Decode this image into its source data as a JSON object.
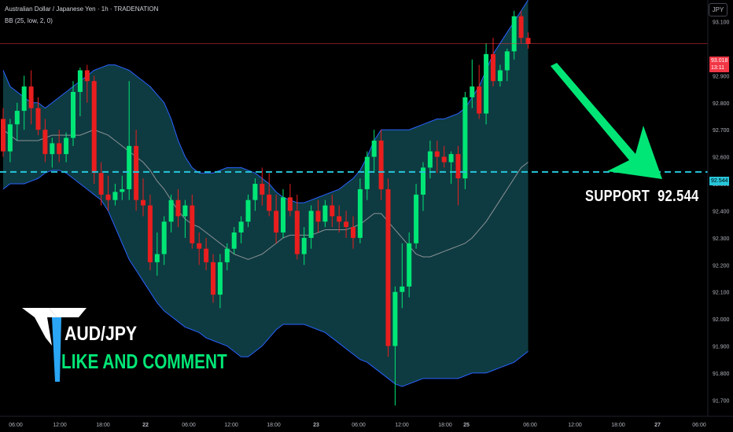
{
  "header": {
    "title": "Australian Dollar / Japanese Yen · 1h · TRADENATION",
    "indicator": "BB (25, low, 2, 0)",
    "currency_button": "JPY"
  },
  "price_tags": {
    "last_price": "93.018",
    "last_price_countdown": "13:11",
    "support_level": "92.544"
  },
  "annotations": {
    "support_text": "SUPPORT  92.544",
    "pair_text": "AUD/JPY",
    "cta_text": "LIKE AND COMMENT"
  },
  "colors": {
    "up": "#00e676",
    "down": "#e91e1e",
    "band_fill": "#0e3b41",
    "band_line": "#2962ff",
    "basis_line": "#8a9296",
    "support_line": "#26c6da",
    "arrow": "#00e676",
    "last_price_tag": "#f23645"
  },
  "chart_data": {
    "type": "candlestick",
    "symbol": "AUDJPY",
    "timeframe": "1h",
    "y_axis": {
      "ylim": [
        91.64,
        93.18
      ],
      "ticks": [
        "93.100",
        "92.900",
        "92.800",
        "92.700",
        "92.600",
        "92.500",
        "92.400",
        "92.300",
        "92.200",
        "92.100",
        "92.000",
        "91.900",
        "91.800",
        "91.700"
      ]
    },
    "x_axis": {
      "ticks": [
        "06:00",
        "12:00",
        "18:00",
        "22",
        "06:00",
        "12:00",
        "18:00",
        "23",
        "06:00",
        "12:00",
        "18:00",
        "25",
        "06:00",
        "12:00",
        "18:00",
        "27",
        "06:00"
      ]
    },
    "support_level": 92.544,
    "last_price": 93.018,
    "candles": [
      {
        "o": 92.74,
        "h": 92.78,
        "l": 92.6,
        "c": 92.62
      },
      {
        "o": 92.62,
        "h": 92.74,
        "l": 92.58,
        "c": 92.72
      },
      {
        "o": 92.72,
        "h": 92.8,
        "l": 92.66,
        "c": 92.77
      },
      {
        "o": 92.77,
        "h": 92.9,
        "l": 92.7,
        "c": 92.86
      },
      {
        "o": 92.86,
        "h": 92.92,
        "l": 92.72,
        "c": 92.78
      },
      {
        "o": 92.78,
        "h": 92.82,
        "l": 92.68,
        "c": 92.7
      },
      {
        "o": 92.7,
        "h": 92.74,
        "l": 92.58,
        "c": 92.61
      },
      {
        "o": 92.61,
        "h": 92.67,
        "l": 92.56,
        "c": 92.65
      },
      {
        "o": 92.65,
        "h": 92.7,
        "l": 92.58,
        "c": 92.61
      },
      {
        "o": 92.61,
        "h": 92.69,
        "l": 92.58,
        "c": 92.67
      },
      {
        "o": 92.67,
        "h": 92.88,
        "l": 92.64,
        "c": 92.84
      },
      {
        "o": 92.84,
        "h": 92.93,
        "l": 92.75,
        "c": 92.92
      },
      {
        "o": 92.92,
        "h": 92.94,
        "l": 92.8,
        "c": 92.88
      },
      {
        "o": 92.88,
        "h": 92.9,
        "l": 92.5,
        "c": 92.54
      },
      {
        "o": 92.54,
        "h": 92.58,
        "l": 92.42,
        "c": 92.46
      },
      {
        "o": 92.46,
        "h": 92.53,
        "l": 92.4,
        "c": 92.44
      },
      {
        "o": 92.44,
        "h": 92.5,
        "l": 92.42,
        "c": 92.47
      },
      {
        "o": 92.47,
        "h": 92.53,
        "l": 92.44,
        "c": 92.48
      },
      {
        "o": 92.48,
        "h": 92.88,
        "l": 92.44,
        "c": 92.64
      },
      {
        "o": 92.64,
        "h": 92.7,
        "l": 92.4,
        "c": 92.44
      },
      {
        "o": 92.44,
        "h": 92.52,
        "l": 92.38,
        "c": 92.42
      },
      {
        "o": 92.42,
        "h": 92.46,
        "l": 92.18,
        "c": 92.21
      },
      {
        "o": 92.21,
        "h": 92.32,
        "l": 92.16,
        "c": 92.24
      },
      {
        "o": 92.24,
        "h": 92.38,
        "l": 92.2,
        "c": 92.36
      },
      {
        "o": 92.36,
        "h": 92.46,
        "l": 92.32,
        "c": 92.44
      },
      {
        "o": 92.44,
        "h": 92.48,
        "l": 92.34,
        "c": 92.38
      },
      {
        "o": 92.38,
        "h": 92.44,
        "l": 92.3,
        "c": 92.42
      },
      {
        "o": 92.42,
        "h": 92.46,
        "l": 92.26,
        "c": 92.28
      },
      {
        "o": 92.28,
        "h": 92.32,
        "l": 92.2,
        "c": 92.26
      },
      {
        "o": 92.26,
        "h": 92.3,
        "l": 92.18,
        "c": 92.21
      },
      {
        "o": 92.21,
        "h": 92.24,
        "l": 92.06,
        "c": 92.09
      },
      {
        "o": 92.09,
        "h": 92.24,
        "l": 92.04,
        "c": 92.21
      },
      {
        "o": 92.21,
        "h": 92.28,
        "l": 92.18,
        "c": 92.26
      },
      {
        "o": 92.26,
        "h": 92.34,
        "l": 92.24,
        "c": 92.32
      },
      {
        "o": 92.32,
        "h": 92.38,
        "l": 92.28,
        "c": 92.36
      },
      {
        "o": 92.36,
        "h": 92.46,
        "l": 92.34,
        "c": 92.44
      },
      {
        "o": 92.44,
        "h": 92.52,
        "l": 92.4,
        "c": 92.5
      },
      {
        "o": 92.5,
        "h": 92.56,
        "l": 92.42,
        "c": 92.46
      },
      {
        "o": 92.46,
        "h": 92.54,
        "l": 92.38,
        "c": 92.4
      },
      {
        "o": 92.4,
        "h": 92.46,
        "l": 92.28,
        "c": 92.32
      },
      {
        "o": 92.32,
        "h": 92.48,
        "l": 92.3,
        "c": 92.45
      },
      {
        "o": 92.45,
        "h": 92.5,
        "l": 92.38,
        "c": 92.4
      },
      {
        "o": 92.4,
        "h": 92.46,
        "l": 92.22,
        "c": 92.24
      },
      {
        "o": 92.24,
        "h": 92.34,
        "l": 92.2,
        "c": 92.3
      },
      {
        "o": 92.3,
        "h": 92.42,
        "l": 92.26,
        "c": 92.4
      },
      {
        "o": 92.4,
        "h": 92.44,
        "l": 92.32,
        "c": 92.36
      },
      {
        "o": 92.36,
        "h": 92.44,
        "l": 92.34,
        "c": 92.42
      },
      {
        "o": 92.42,
        "h": 92.46,
        "l": 92.34,
        "c": 92.38
      },
      {
        "o": 92.38,
        "h": 92.42,
        "l": 92.32,
        "c": 92.36
      },
      {
        "o": 92.36,
        "h": 92.4,
        "l": 92.3,
        "c": 92.34
      },
      {
        "o": 92.34,
        "h": 92.38,
        "l": 92.26,
        "c": 92.3
      },
      {
        "o": 92.3,
        "h": 92.52,
        "l": 92.28,
        "c": 92.48
      },
      {
        "o": 92.48,
        "h": 92.62,
        "l": 92.44,
        "c": 92.6
      },
      {
        "o": 92.6,
        "h": 92.7,
        "l": 92.54,
        "c": 92.66
      },
      {
        "o": 92.66,
        "h": 92.7,
        "l": 92.44,
        "c": 92.48
      },
      {
        "o": 92.48,
        "h": 92.52,
        "l": 91.86,
        "c": 91.9
      },
      {
        "o": 91.9,
        "h": 92.12,
        "l": 91.68,
        "c": 92.1
      },
      {
        "o": 92.1,
        "h": 92.28,
        "l": 92.04,
        "c": 92.12
      },
      {
        "o": 92.12,
        "h": 92.32,
        "l": 92.08,
        "c": 92.28
      },
      {
        "o": 92.28,
        "h": 92.5,
        "l": 92.26,
        "c": 92.46
      },
      {
        "o": 92.46,
        "h": 92.58,
        "l": 92.4,
        "c": 92.56
      },
      {
        "o": 92.56,
        "h": 92.66,
        "l": 92.52,
        "c": 92.62
      },
      {
        "o": 92.62,
        "h": 92.66,
        "l": 92.54,
        "c": 92.6
      },
      {
        "o": 92.6,
        "h": 92.64,
        "l": 92.56,
        "c": 92.58
      },
      {
        "o": 92.58,
        "h": 92.62,
        "l": 92.5,
        "c": 92.61
      },
      {
        "o": 92.61,
        "h": 92.64,
        "l": 92.42,
        "c": 92.52
      },
      {
        "o": 92.52,
        "h": 92.84,
        "l": 92.48,
        "c": 92.82
      },
      {
        "o": 92.82,
        "h": 92.96,
        "l": 92.78,
        "c": 92.86
      },
      {
        "o": 92.86,
        "h": 92.94,
        "l": 92.74,
        "c": 92.76
      },
      {
        "o": 92.76,
        "h": 93.02,
        "l": 92.72,
        "c": 92.98
      },
      {
        "o": 92.98,
        "h": 93.04,
        "l": 92.86,
        "c": 92.88
      },
      {
        "o": 92.88,
        "h": 92.94,
        "l": 92.86,
        "c": 92.92
      },
      {
        "o": 92.92,
        "h": 93.0,
        "l": 92.88,
        "c": 92.99
      },
      {
        "o": 92.99,
        "h": 93.14,
        "l": 92.96,
        "c": 93.12
      },
      {
        "o": 93.12,
        "h": 93.14,
        "l": 93.02,
        "c": 93.04
      },
      {
        "o": 93.04,
        "h": 93.06,
        "l": 93.0,
        "c": 93.018
      }
    ],
    "bollinger": {
      "upper": [
        92.92,
        92.86,
        92.84,
        92.82,
        92.8,
        92.8,
        92.78,
        92.8,
        92.82,
        92.84,
        92.86,
        92.88,
        92.9,
        92.92,
        92.93,
        92.94,
        92.94,
        92.93,
        92.92,
        92.9,
        92.88,
        92.86,
        92.83,
        92.8,
        92.74,
        92.66,
        92.6,
        92.56,
        92.54,
        92.54,
        92.54,
        92.55,
        92.56,
        92.56,
        92.56,
        92.55,
        92.54,
        92.52,
        92.5,
        92.47,
        92.45,
        92.44,
        92.43,
        92.43,
        92.44,
        92.45,
        92.46,
        92.47,
        92.48,
        92.5,
        92.52,
        92.55,
        92.6,
        92.66,
        92.7,
        92.7,
        92.7,
        92.7,
        92.7,
        92.71,
        92.72,
        92.73,
        92.74,
        92.74,
        92.75,
        92.76,
        92.78,
        92.82,
        92.86,
        92.92,
        92.98,
        93.02,
        93.06,
        93.1,
        93.14,
        93.18
      ],
      "basis": [
        92.7,
        92.68,
        92.66,
        92.66,
        92.66,
        92.66,
        92.67,
        92.68,
        92.68,
        92.68,
        92.68,
        92.68,
        92.69,
        92.7,
        92.69,
        92.68,
        92.66,
        92.64,
        92.62,
        92.6,
        92.58,
        92.55,
        92.51,
        92.48,
        92.44,
        92.4,
        92.37,
        92.35,
        92.34,
        92.32,
        92.3,
        92.28,
        92.26,
        92.24,
        92.23,
        92.22,
        92.23,
        92.24,
        92.26,
        92.28,
        92.3,
        92.31,
        92.31,
        92.31,
        92.31,
        92.32,
        92.33,
        92.33,
        92.33,
        92.33,
        92.34,
        92.35,
        92.37,
        92.39,
        92.39,
        92.36,
        92.33,
        92.3,
        92.27,
        92.24,
        92.23,
        92.23,
        92.24,
        92.25,
        92.26,
        92.27,
        92.28,
        92.3,
        92.33,
        92.36,
        92.4,
        92.44,
        92.48,
        92.52,
        92.56,
        92.58
      ],
      "lower": [
        92.48,
        92.5,
        92.5,
        92.5,
        92.51,
        92.52,
        92.54,
        92.55,
        92.55,
        92.54,
        92.52,
        92.5,
        92.48,
        92.46,
        92.44,
        92.4,
        92.34,
        92.28,
        92.22,
        92.18,
        92.14,
        92.1,
        92.06,
        92.03,
        92.01,
        91.99,
        91.97,
        91.96,
        91.95,
        91.93,
        91.92,
        91.91,
        91.9,
        91.88,
        91.86,
        91.86,
        91.88,
        91.9,
        91.93,
        91.96,
        91.98,
        91.98,
        91.98,
        91.98,
        91.97,
        91.96,
        91.95,
        91.93,
        91.91,
        91.89,
        91.87,
        91.85,
        91.84,
        91.82,
        91.8,
        91.78,
        91.76,
        91.75,
        91.76,
        91.77,
        91.78,
        91.78,
        91.78,
        91.78,
        91.78,
        91.78,
        91.79,
        91.8,
        91.8,
        91.8,
        91.81,
        91.82,
        91.83,
        91.84,
        91.86,
        91.88
      ]
    }
  }
}
